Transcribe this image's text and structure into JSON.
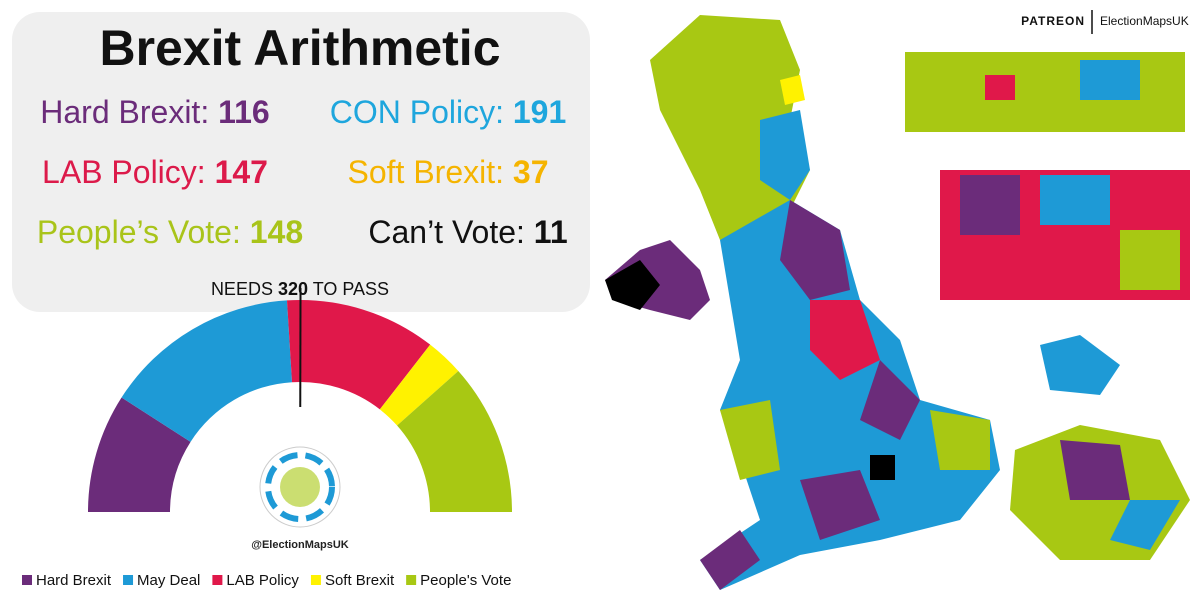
{
  "header": {
    "title": "Brexit Arithmetic"
  },
  "stats": [
    {
      "label": "Hard Brexit:",
      "color": "#6b2c7a"
    },
    {
      "label": "CON Policy:",
      "color": "#1ea6dd"
    },
    {
      "label": "LAB Policy:",
      "color": "#dc1a4a"
    },
    {
      "label": "Soft Brexit:",
      "color": "#f5b400"
    },
    {
      "label": "People’s Vote:",
      "color": "#a9c41a"
    }
  ],
  "cant_vote": {
    "label": "Can’t Vote:",
    "value": 11,
    "color": "#111111"
  },
  "chart_data": {
    "type": "semicircle",
    "categories": [
      "Hard Brexit",
      "May Deal",
      "LAB Policy",
      "Soft Brexit",
      "People's Vote"
    ],
    "values": [
      116,
      191,
      147,
      37,
      148
    ],
    "colors": [
      "#6b2c7a",
      "#1e9ad6",
      "#e0184a",
      "#fff200",
      "#a8c813"
    ],
    "threshold": {
      "prefix": "NEEDS",
      "value": 320,
      "suffix": "TO PASS"
    }
  },
  "handle": "@ElectionMapsUK",
  "branding": {
    "patreon": "PATREON",
    "name": "ElectionMapsUK"
  }
}
